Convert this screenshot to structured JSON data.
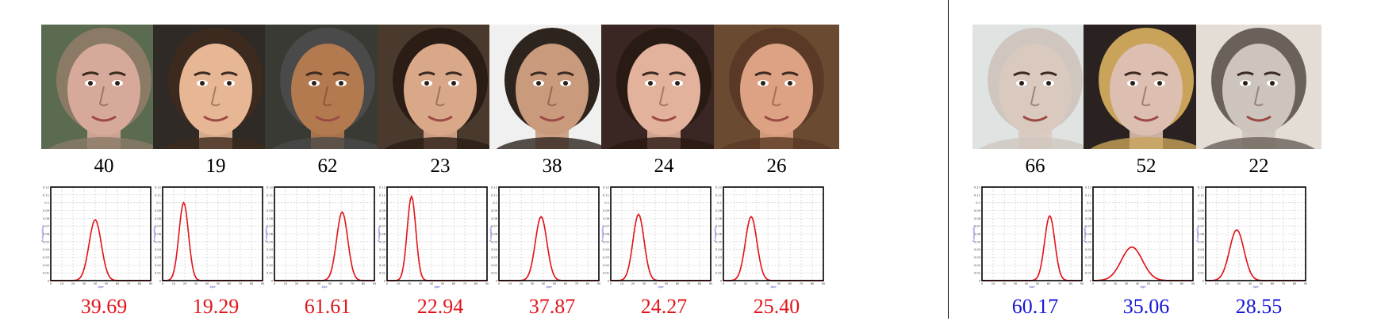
{
  "colors": {
    "predicted_left": "#e0161c",
    "predicted_right": "#1616d8",
    "curve": "#e0161c",
    "axis_label": "#4b4bd6"
  },
  "axis_labels": {
    "x": "Age",
    "y": "Probability"
  },
  "y_ticks": [
    "0.12",
    "0.11",
    "0.1",
    "0.09",
    "0.08",
    "0.07",
    "0.06",
    "0.05",
    "0.04",
    "0.03",
    "0.02",
    "0.01",
    "0"
  ],
  "x_ticks": [
    "0",
    "10",
    "20",
    "30",
    "40",
    "50",
    "60",
    "70",
    "80",
    "90"
  ],
  "groups": [
    {
      "id": "left",
      "samples": [
        {
          "true_age": "40",
          "predicted": "39.69",
          "peak_age": 40,
          "peak_prob": 0.078,
          "sigma": 5.5,
          "skin": "#d7a99a",
          "hair": "#8a7a66",
          "bg": "#5b6b4f"
        },
        {
          "true_age": "19",
          "predicted": "19.29",
          "peak_age": 19,
          "peak_prob": 0.1,
          "sigma": 4.3,
          "skin": "#e7b795",
          "hair": "#3c2a1e",
          "bg": "#2f2a25"
        },
        {
          "true_age": "62",
          "predicted": "61.61",
          "peak_age": 61,
          "peak_prob": 0.088,
          "sigma": 5.0,
          "skin": "#b37a4f",
          "hair": "#4a4a4a",
          "bg": "#3a3a34"
        },
        {
          "true_age": "23",
          "predicted": "22.94",
          "peak_age": 22,
          "peak_prob": 0.108,
          "sigma": 3.9,
          "skin": "#d9a889",
          "hair": "#2b1d15",
          "bg": "#4a3a2e"
        },
        {
          "true_age": "38",
          "predicted": "37.87",
          "peak_age": 38,
          "peak_prob": 0.082,
          "sigma": 5.2,
          "skin": "#c99a7c",
          "hair": "#2e241e",
          "bg": "#f0f0f0"
        },
        {
          "true_age": "24",
          "predicted": "24.27",
          "peak_age": 25,
          "peak_prob": 0.085,
          "sigma": 5.0,
          "skin": "#e2b29c",
          "hair": "#2a1a14",
          "bg": "#3a2622"
        },
        {
          "true_age": "26",
          "predicted": "25.40",
          "peak_age": 25,
          "peak_prob": 0.082,
          "sigma": 5.2,
          "skin": "#dca283",
          "hair": "#5a3a26",
          "bg": "#6b4a32"
        }
      ]
    },
    {
      "id": "right",
      "samples": [
        {
          "true_age": "66",
          "predicted": "60.17",
          "peak_age": 61,
          "peak_prob": 0.083,
          "sigma": 4.6,
          "skin": "#d9c9bf",
          "hair": "#cfc7bf",
          "bg": "#dfe4e3"
        },
        {
          "true_age": "52",
          "predicted": "35.06",
          "peak_age": 35,
          "peak_prob": 0.043,
          "sigma": 9.5,
          "skin": "#dcbfb0",
          "hair": "#c9a35a",
          "bg": "#2a2220"
        },
        {
          "true_age": "22",
          "predicted": "28.55",
          "peak_age": 28,
          "peak_prob": 0.065,
          "sigma": 6.5,
          "skin": "#cdc5bd",
          "hair": "#6a625a",
          "bg": "#e4ddd6"
        }
      ]
    }
  ]
}
